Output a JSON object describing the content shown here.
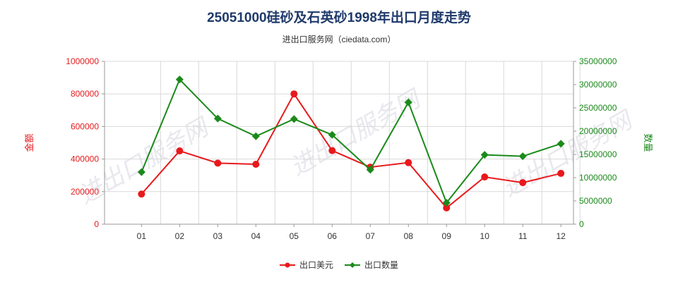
{
  "title": "25051000硅砂及石英砂1998年出口月度走势",
  "subtitle": "进出口服务网（ciedata.com）",
  "watermark": "进出口服务网",
  "chart_data": {
    "type": "line",
    "categories": [
      "01",
      "02",
      "03",
      "04",
      "05",
      "06",
      "07",
      "08",
      "09",
      "10",
      "11",
      "12"
    ],
    "y_left": {
      "label": "金额",
      "ylim": [
        0,
        1000000
      ],
      "ticks": [
        "0",
        "200000",
        "400000",
        "600000",
        "800000",
        "1000000"
      ],
      "tick_values": [
        0,
        200000,
        400000,
        600000,
        800000,
        1000000
      ],
      "color": "#e8191c"
    },
    "y_right": {
      "label": "数量",
      "ylim": [
        0,
        35000000
      ],
      "ticks": [
        "0",
        "5000000",
        "10000000",
        "15000000",
        "20000000",
        "25000000",
        "30000000",
        "35000000"
      ],
      "tick_values": [
        0,
        5000000,
        10000000,
        15000000,
        20000000,
        25000000,
        30000000,
        35000000
      ],
      "color": "#1a8a1a"
    },
    "series": [
      {
        "name": "出口美元",
        "axis": "left",
        "color": "#e8191c",
        "marker": "circle",
        "values": [
          185000,
          450000,
          375000,
          368000,
          800000,
          452000,
          350000,
          378000,
          100000,
          290000,
          255000,
          312000
        ]
      },
      {
        "name": "出口数量",
        "axis": "right",
        "color": "#1a8a1a",
        "marker": "diamond",
        "values": [
          11200000,
          31100000,
          22700000,
          18900000,
          22600000,
          19200000,
          11700000,
          26200000,
          4600000,
          14900000,
          14600000,
          17300000
        ]
      }
    ],
    "grid": true,
    "legend_position": "bottom"
  }
}
